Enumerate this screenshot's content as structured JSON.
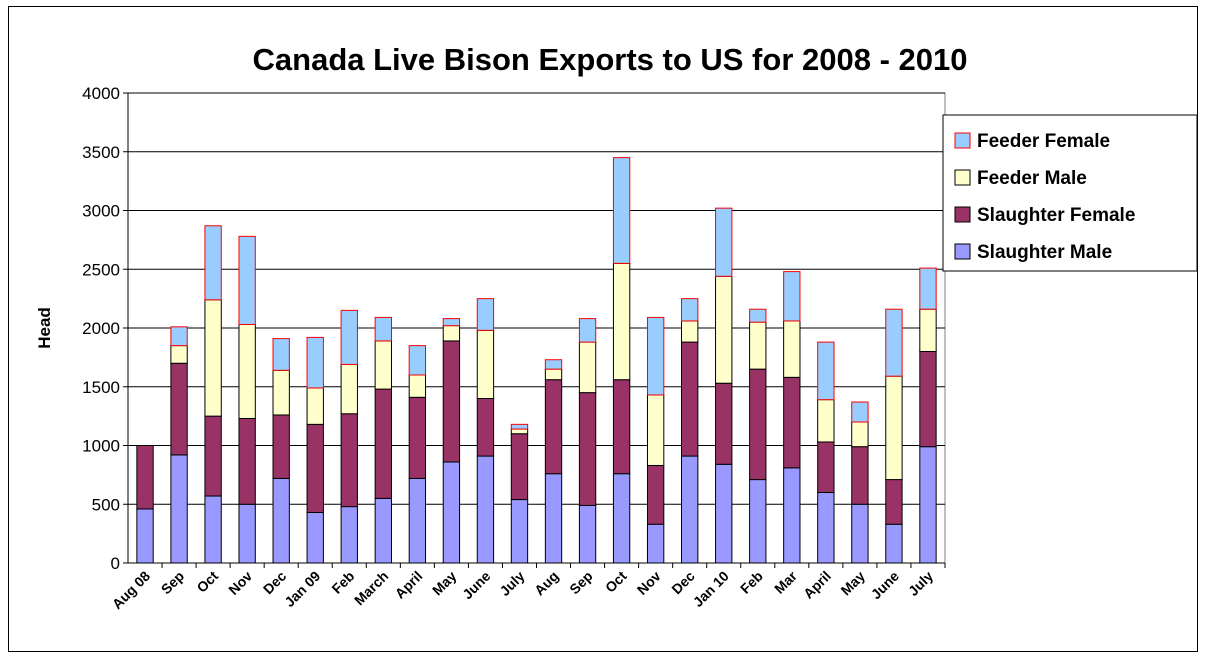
{
  "chart_data": {
    "type": "bar",
    "stacked": true,
    "title": "Canada Live Bison Exports to US for 2008 - 2010",
    "xlabel": "",
    "ylabel": "Head",
    "ylim": [
      0,
      4000
    ],
    "yticks": [
      0,
      500,
      1000,
      1500,
      2000,
      2500,
      3000,
      3500,
      4000
    ],
    "grid": true,
    "legend_position": "right",
    "categories": [
      "Aug 08",
      "Sep",
      "Oct",
      "Nov",
      "Dec",
      "Jan 09",
      "Feb",
      "March",
      "April",
      "May",
      "June",
      "July",
      "Aug",
      "Sep",
      "Oct",
      "Nov",
      "Dec",
      "Jan 10",
      "Feb",
      "Mar",
      "April",
      "May",
      "June",
      "July"
    ],
    "series": [
      {
        "name": "Slaughter Male",
        "color": "#9999ff",
        "values": [
          460,
          920,
          570,
          500,
          720,
          430,
          480,
          550,
          720,
          860,
          910,
          540,
          760,
          490,
          760,
          330,
          910,
          840,
          710,
          810,
          600,
          500,
          330,
          990
        ]
      },
      {
        "name": "Slaughter Female",
        "color": "#993366",
        "values": [
          540,
          780,
          680,
          730,
          540,
          750,
          790,
          930,
          690,
          1030,
          490,
          560,
          800,
          960,
          800,
          500,
          970,
          690,
          940,
          770,
          430,
          490,
          380,
          810
        ]
      },
      {
        "name": "Feeder Male",
        "color": "#ffffcc",
        "values": [
          0,
          150,
          990,
          800,
          380,
          310,
          420,
          410,
          190,
          130,
          580,
          40,
          90,
          430,
          990,
          600,
          180,
          910,
          400,
          480,
          360,
          210,
          880,
          360
        ]
      },
      {
        "name": "Feeder Female",
        "color": "#99ccff",
        "values": [
          0,
          160,
          630,
          750,
          270,
          430,
          460,
          200,
          250,
          60,
          270,
          40,
          80,
          200,
          900,
          660,
          190,
          580,
          110,
          420,
          490,
          170,
          570,
          350
        ]
      }
    ],
    "legend_order": [
      "Feeder Female",
      "Feeder Male",
      "Slaughter Female",
      "Slaughter Male"
    ],
    "bar_edge_colors": {
      "Feeder Female": "#ff0000"
    }
  }
}
